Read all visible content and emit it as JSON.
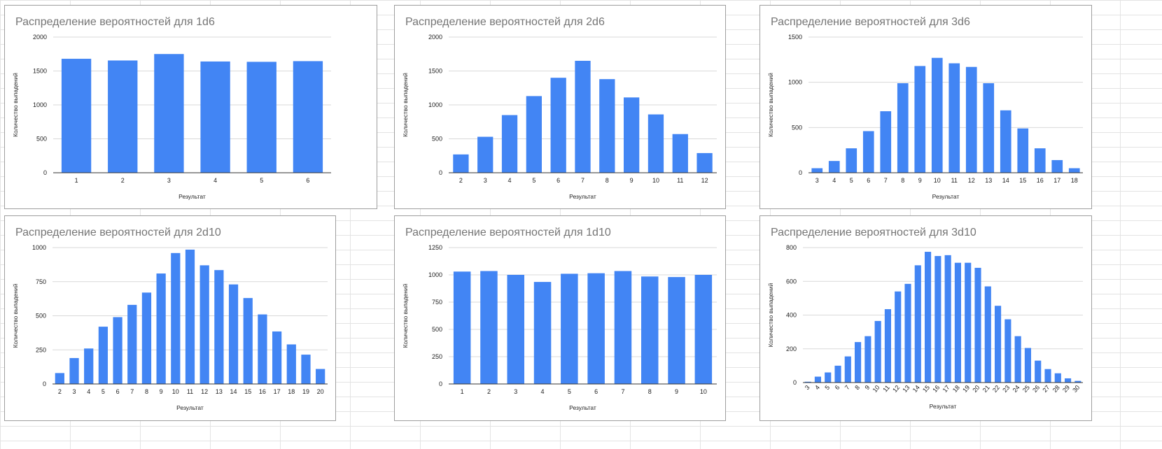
{
  "chart_data": [
    {
      "type": "bar",
      "title": "Распределение вероятностей для 1d6",
      "xlabel": "Результат",
      "ylabel": "Количество выпадений",
      "color": "#4285f4",
      "ylim": [
        0,
        2000
      ],
      "yticks": [
        0,
        500,
        1000,
        1500,
        2000
      ],
      "grid": true,
      "categories": [
        "1",
        "2",
        "3",
        "4",
        "5",
        "6"
      ],
      "values": [
        1680,
        1655,
        1750,
        1640,
        1635,
        1645
      ]
    },
    {
      "type": "bar",
      "title": "Распределение вероятностей для 2d6",
      "xlabel": "Результат",
      "ylabel": "Количество выпадений",
      "color": "#4285f4",
      "ylim": [
        0,
        2000
      ],
      "yticks": [
        0,
        500,
        1000,
        1500,
        2000
      ],
      "grid": true,
      "categories": [
        "2",
        "3",
        "4",
        "5",
        "6",
        "7",
        "8",
        "9",
        "10",
        "11",
        "12"
      ],
      "values": [
        270,
        530,
        850,
        1130,
        1400,
        1650,
        1380,
        1110,
        860,
        570,
        290
      ]
    },
    {
      "type": "bar",
      "title": "Распределение вероятностей для 3d6",
      "xlabel": "Результат",
      "ylabel": "Количество выпадений",
      "color": "#4285f4",
      "ylim": [
        0,
        1500
      ],
      "yticks": [
        0,
        500,
        1000,
        1500
      ],
      "grid": true,
      "categories": [
        "3",
        "4",
        "5",
        "6",
        "7",
        "8",
        "9",
        "10",
        "11",
        "12",
        "13",
        "14",
        "15",
        "16",
        "17",
        "18"
      ],
      "values": [
        50,
        130,
        270,
        460,
        680,
        990,
        1180,
        1270,
        1210,
        1170,
        990,
        690,
        490,
        270,
        140,
        50
      ]
    },
    {
      "type": "bar",
      "title": "Распределение вероятностей для 2d10",
      "xlabel": "Результат",
      "ylabel": "Количество выпадений",
      "color": "#4285f4",
      "ylim": [
        0,
        1000
      ],
      "yticks": [
        0,
        250,
        500,
        750,
        1000
      ],
      "grid": true,
      "categories": [
        "2",
        "3",
        "4",
        "5",
        "6",
        "7",
        "8",
        "9",
        "10",
        "11",
        "12",
        "13",
        "14",
        "15",
        "16",
        "17",
        "18",
        "19",
        "20"
      ],
      "values": [
        80,
        190,
        260,
        420,
        490,
        580,
        670,
        810,
        960,
        985,
        870,
        835,
        730,
        630,
        510,
        385,
        290,
        215,
        110
      ]
    },
    {
      "type": "bar",
      "title": "Распределение вероятностей для 1d10",
      "xlabel": "Результат",
      "ylabel": "Количество выпадений",
      "color": "#4285f4",
      "ylim": [
        0,
        1250
      ],
      "yticks": [
        0,
        250,
        500,
        750,
        1000,
        1250
      ],
      "grid": true,
      "categories": [
        "1",
        "2",
        "3",
        "4",
        "5",
        "6",
        "7",
        "8",
        "9",
        "10"
      ],
      "values": [
        1030,
        1035,
        1000,
        935,
        1010,
        1015,
        1035,
        985,
        980,
        1000
      ]
    },
    {
      "type": "bar",
      "title": "Распределение вероятностей для 3d10",
      "xlabel": "Результат",
      "ylabel": "Количество выпадений",
      "color": "#4285f4",
      "ylim": [
        0,
        800
      ],
      "yticks": [
        0,
        200,
        400,
        600,
        800
      ],
      "grid": true,
      "categories": [
        "3",
        "4",
        "5",
        "6",
        "7",
        "8",
        "9",
        "10",
        "11",
        "12",
        "13",
        "14",
        "15",
        "16",
        "17",
        "18",
        "19",
        "20",
        "21",
        "22",
        "23",
        "24",
        "25",
        "26",
        "27",
        "28",
        "29",
        "30"
      ],
      "values": [
        5,
        35,
        60,
        100,
        155,
        240,
        275,
        365,
        435,
        540,
        585,
        695,
        775,
        750,
        755,
        710,
        710,
        680,
        570,
        455,
        375,
        275,
        205,
        130,
        80,
        55,
        25,
        10
      ]
    }
  ]
}
